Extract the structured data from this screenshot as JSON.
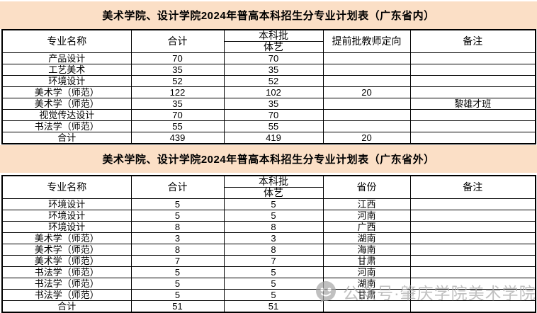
{
  "colors": {
    "title_band_bg": "#fbdfc6",
    "table_border": "#000000",
    "watermark_gray": "#a9a9a9"
  },
  "table_inside": {
    "title": "美术学院、设计学院2024年普高本科招生分专业计划表（广东省内）",
    "headers": {
      "major": "专业名称",
      "total": "合计",
      "batch_top": "本科批",
      "batch_bottom": "体艺",
      "col4": "提前批教师定向",
      "remark": "备注"
    },
    "rows": [
      [
        "产品设计",
        "70",
        "70",
        "",
        ""
      ],
      [
        "工艺美术",
        "35",
        "35",
        "",
        ""
      ],
      [
        "环境设计",
        "52",
        "52",
        "",
        ""
      ],
      [
        "美术学（师范）",
        "122",
        "102",
        "20",
        ""
      ],
      [
        "美术学（师范）",
        "35",
        "35",
        "",
        "黎雄才班"
      ],
      [
        "视觉传达设计",
        "70",
        "70",
        "",
        ""
      ],
      [
        "书法学（师范）",
        "55",
        "55",
        "",
        ""
      ],
      [
        "合计",
        "439",
        "419",
        "20",
        ""
      ]
    ]
  },
  "table_outside": {
    "title": "美术学院、设计学院2024年普高本科招生分专业计划表（广东省外）",
    "headers": {
      "major": "专业名称",
      "total": "合计",
      "batch_top": "本科批",
      "batch_bottom": "体艺",
      "col4": "省份",
      "remark": "备注"
    },
    "rows": [
      [
        "环境设计",
        "5",
        "5",
        "江西",
        ""
      ],
      [
        "环境设计",
        "5",
        "5",
        "河南",
        ""
      ],
      [
        "环境设计",
        "8",
        "8",
        "广西",
        ""
      ],
      [
        "美术学（师范）",
        "3",
        "3",
        "湖南",
        ""
      ],
      [
        "美术学（师范）",
        "8",
        "8",
        "海南",
        ""
      ],
      [
        "美术学（师范）",
        "7",
        "7",
        "甘肃",
        ""
      ],
      [
        "书法学（师范）",
        "5",
        "5",
        "河南",
        ""
      ],
      [
        "书法学（师范）",
        "5",
        "5",
        "湖南",
        ""
      ],
      [
        "书法学（师范）",
        "5",
        "5",
        "甘肃",
        ""
      ],
      [
        "合计",
        "51",
        "51",
        "",
        ""
      ]
    ]
  },
  "watermark": {
    "text": "公众号·肇庆学院美术学院",
    "icon": "wechat-official-account-icon"
  }
}
